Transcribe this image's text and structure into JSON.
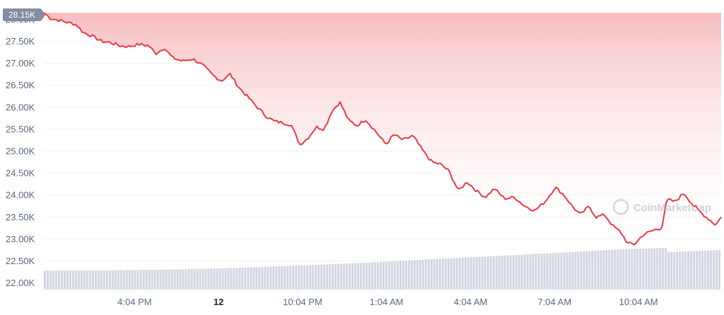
{
  "watermark": {
    "text": "CoinMarketCap"
  },
  "price_tag": {
    "label": "28.15K"
  },
  "chart_data": {
    "type": "area",
    "price_series": {
      "name": "",
      "start": 28.15,
      "end": 23.5,
      "range_fraction": [
        0,
        1
      ],
      "points": [
        [
          0.0,
          28.15
        ],
        [
          0.01,
          28.02
        ],
        [
          0.022,
          27.98
        ],
        [
          0.035,
          27.93
        ],
        [
          0.048,
          27.88
        ],
        [
          0.058,
          27.7
        ],
        [
          0.07,
          27.63
        ],
        [
          0.085,
          27.5
        ],
        [
          0.098,
          27.47
        ],
        [
          0.112,
          27.4
        ],
        [
          0.125,
          27.38
        ],
        [
          0.14,
          27.43
        ],
        [
          0.155,
          27.4
        ],
        [
          0.165,
          27.22
        ],
        [
          0.178,
          27.35
        ],
        [
          0.19,
          27.12
        ],
        [
          0.205,
          27.05
        ],
        [
          0.22,
          27.1
        ],
        [
          0.235,
          26.95
        ],
        [
          0.25,
          26.72
        ],
        [
          0.262,
          26.6
        ],
        [
          0.275,
          26.75
        ],
        [
          0.288,
          26.45
        ],
        [
          0.3,
          26.25
        ],
        [
          0.315,
          26.0
        ],
        [
          0.328,
          25.8
        ],
        [
          0.34,
          25.68
        ],
        [
          0.352,
          25.65
        ],
        [
          0.365,
          25.6
        ],
        [
          0.378,
          25.15
        ],
        [
          0.39,
          25.3
        ],
        [
          0.402,
          25.55
        ],
        [
          0.414,
          25.5
        ],
        [
          0.425,
          25.9
        ],
        [
          0.437,
          26.12
        ],
        [
          0.45,
          25.7
        ],
        [
          0.462,
          25.58
        ],
        [
          0.475,
          25.72
        ],
        [
          0.49,
          25.45
        ],
        [
          0.505,
          25.15
        ],
        [
          0.517,
          25.38
        ],
        [
          0.53,
          25.25
        ],
        [
          0.545,
          25.35
        ],
        [
          0.56,
          25.0
        ],
        [
          0.573,
          24.75
        ],
        [
          0.586,
          24.7
        ],
        [
          0.598,
          24.55
        ],
        [
          0.612,
          24.1
        ],
        [
          0.625,
          24.3
        ],
        [
          0.64,
          24.08
        ],
        [
          0.652,
          23.95
        ],
        [
          0.665,
          24.15
        ],
        [
          0.68,
          23.92
        ],
        [
          0.695,
          23.95
        ],
        [
          0.71,
          23.75
        ],
        [
          0.725,
          23.65
        ],
        [
          0.74,
          23.85
        ],
        [
          0.755,
          24.18
        ],
        [
          0.768,
          24.0
        ],
        [
          0.78,
          23.75
        ],
        [
          0.792,
          23.55
        ],
        [
          0.805,
          23.75
        ],
        [
          0.815,
          23.5
        ],
        [
          0.828,
          23.55
        ],
        [
          0.84,
          23.3
        ],
        [
          0.852,
          23.15
        ],
        [
          0.862,
          22.9
        ],
        [
          0.872,
          22.88
        ],
        [
          0.885,
          23.1
        ],
        [
          0.9,
          23.2
        ],
        [
          0.912,
          23.25
        ],
        [
          0.92,
          23.9
        ],
        [
          0.932,
          23.85
        ],
        [
          0.945,
          24.05
        ],
        [
          0.958,
          23.78
        ],
        [
          0.97,
          23.6
        ],
        [
          0.982,
          23.45
        ],
        [
          0.992,
          23.32
        ],
        [
          1.0,
          23.5
        ]
      ]
    },
    "volume_series": {
      "name": "",
      "base": 22.0,
      "points": [
        [
          0.0,
          22.28
        ],
        [
          0.1,
          22.29
        ],
        [
          0.2,
          22.31
        ],
        [
          0.3,
          22.35
        ],
        [
          0.4,
          22.41
        ],
        [
          0.5,
          22.48
        ],
        [
          0.6,
          22.56
        ],
        [
          0.7,
          22.64
        ],
        [
          0.8,
          22.72
        ],
        [
          0.86,
          22.77
        ],
        [
          0.919,
          22.8
        ],
        [
          0.92,
          22.7
        ],
        [
          1.0,
          22.75
        ]
      ]
    },
    "y_axis": {
      "ylim": [
        21.85,
        28.15
      ],
      "ticks": [
        22.0,
        22.5,
        23.0,
        23.5,
        24.0,
        24.5,
        25.0,
        25.5,
        26.0,
        26.5,
        27.0,
        27.5,
        28.0
      ],
      "tick_labels": [
        "22.00K",
        "22.50K",
        "23.00K",
        "23.50K",
        "24.00K",
        "24.50K",
        "25.00K",
        "25.50K",
        "26.00K",
        "26.50K",
        "27.00K",
        "27.50K",
        "28.00K"
      ]
    },
    "x_axis": {
      "ticks": [
        {
          "label": "4:04 PM",
          "pos": 0.134,
          "bold": false
        },
        {
          "label": "12",
          "pos": 0.258,
          "bold": true
        },
        {
          "label": "10:04 PM",
          "pos": 0.382,
          "bold": false
        },
        {
          "label": "1:04 AM",
          "pos": 0.506,
          "bold": false
        },
        {
          "label": "4:04 AM",
          "pos": 0.63,
          "bold": false
        },
        {
          "label": "7:04 AM",
          "pos": 0.754,
          "bold": false
        },
        {
          "label": "10:04 AM",
          "pos": 0.878,
          "bold": false
        }
      ]
    },
    "grid": true,
    "colors": {
      "line": "#ea3943",
      "fill_top": "#f6b2b6",
      "fill_bottom": "#ffffff",
      "volume": "#d1d6e0",
      "grid": "#eff2f5",
      "tag_bg": "#858ca2"
    }
  }
}
